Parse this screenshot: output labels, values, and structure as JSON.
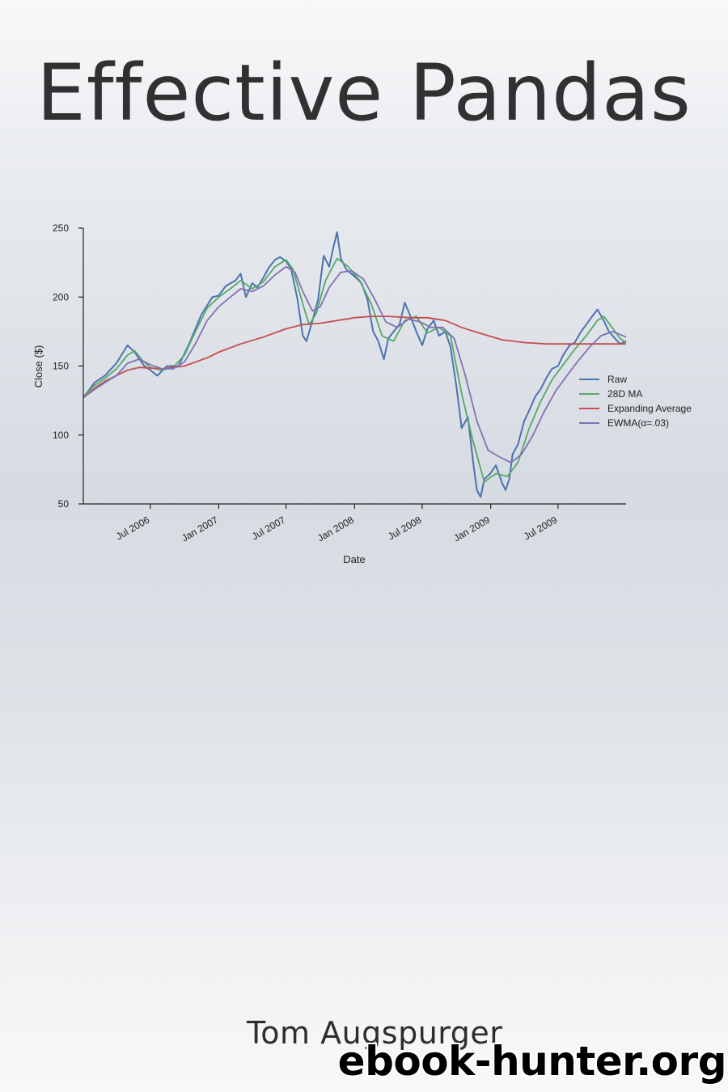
{
  "cover": {
    "title": "Effective Pandas",
    "author": "Tom Augspurger",
    "watermark": "ebook-hunter.org"
  },
  "chart_data": {
    "type": "line",
    "title": "",
    "xlabel": "Date",
    "ylabel": "Close ($)",
    "ylim": [
      50,
      250
    ],
    "xlim": [
      "2006-01-02",
      "2009-12-31"
    ],
    "yticks": [
      50,
      100,
      150,
      200,
      250
    ],
    "xticks": [
      "2006-07-01",
      "2007-01-01",
      "2007-07-01",
      "2008-01-01",
      "2008-07-01",
      "2009-01-01",
      "2009-07-01"
    ],
    "xtick_labels": [
      "Jul 2006",
      "Jan 2007",
      "Jul 2007",
      "Jan 2008",
      "Jul 2008",
      "Jan 2009",
      "Jul 2009"
    ],
    "legend": "center-right",
    "grid": false,
    "series": [
      {
        "name": "Raw",
        "color": "#4c72b0",
        "points": [
          [
            "2006-01-02",
            127
          ],
          [
            "2006-02-01",
            138
          ],
          [
            "2006-03-01",
            143
          ],
          [
            "2006-04-01",
            152
          ],
          [
            "2006-05-01",
            165
          ],
          [
            "2006-05-20",
            160
          ],
          [
            "2006-06-15",
            150
          ],
          [
            "2006-07-01",
            147
          ],
          [
            "2006-07-20",
            143
          ],
          [
            "2006-08-15",
            150
          ],
          [
            "2006-09-15",
            150
          ],
          [
            "2006-10-15",
            167
          ],
          [
            "2006-11-15",
            187
          ],
          [
            "2006-12-15",
            200
          ],
          [
            "2007-01-01",
            201
          ],
          [
            "2007-01-20",
            208
          ],
          [
            "2007-02-15",
            212
          ],
          [
            "2007-03-01",
            217
          ],
          [
            "2007-03-15",
            200
          ],
          [
            "2007-04-01",
            210
          ],
          [
            "2007-04-15",
            207
          ],
          [
            "2007-05-01",
            214
          ],
          [
            "2007-05-15",
            221
          ],
          [
            "2007-06-01",
            227
          ],
          [
            "2007-06-15",
            229
          ],
          [
            "2007-07-01",
            226
          ],
          [
            "2007-07-15",
            220
          ],
          [
            "2007-08-01",
            198
          ],
          [
            "2007-08-15",
            172
          ],
          [
            "2007-08-25",
            168
          ],
          [
            "2007-09-10",
            183
          ],
          [
            "2007-09-25",
            198
          ],
          [
            "2007-10-10",
            230
          ],
          [
            "2007-10-25",
            222
          ],
          [
            "2007-11-05",
            236
          ],
          [
            "2007-11-15",
            247
          ],
          [
            "2007-11-25",
            228
          ],
          [
            "2007-12-10",
            220
          ],
          [
            "2008-01-01",
            215
          ],
          [
            "2008-01-20",
            210
          ],
          [
            "2008-02-05",
            198
          ],
          [
            "2008-02-20",
            175
          ],
          [
            "2008-03-05",
            168
          ],
          [
            "2008-03-20",
            155
          ],
          [
            "2008-04-01",
            170
          ],
          [
            "2008-04-15",
            175
          ],
          [
            "2008-05-01",
            180
          ],
          [
            "2008-05-15",
            196
          ],
          [
            "2008-06-01",
            185
          ],
          [
            "2008-06-15",
            175
          ],
          [
            "2008-07-01",
            165
          ],
          [
            "2008-07-15",
            177
          ],
          [
            "2008-08-01",
            183
          ],
          [
            "2008-08-15",
            172
          ],
          [
            "2008-09-01",
            175
          ],
          [
            "2008-09-15",
            164
          ],
          [
            "2008-10-01",
            135
          ],
          [
            "2008-10-15",
            105
          ],
          [
            "2008-11-01",
            113
          ],
          [
            "2008-11-15",
            80
          ],
          [
            "2008-11-25",
            60
          ],
          [
            "2008-12-05",
            55
          ],
          [
            "2008-12-15",
            68
          ],
          [
            "2008-12-31",
            72
          ],
          [
            "2009-01-15",
            78
          ],
          [
            "2009-02-01",
            65
          ],
          [
            "2009-02-10",
            60
          ],
          [
            "2009-02-20",
            68
          ],
          [
            "2009-03-01",
            86
          ],
          [
            "2009-03-15",
            93
          ],
          [
            "2009-04-01",
            110
          ],
          [
            "2009-04-15",
            118
          ],
          [
            "2009-05-01",
            128
          ],
          [
            "2009-05-15",
            133
          ],
          [
            "2009-06-01",
            142
          ],
          [
            "2009-06-15",
            148
          ],
          [
            "2009-07-01",
            150
          ],
          [
            "2009-07-15",
            158
          ],
          [
            "2009-08-01",
            165
          ],
          [
            "2009-08-15",
            167
          ],
          [
            "2009-09-01",
            175
          ],
          [
            "2009-09-15",
            180
          ],
          [
            "2009-10-01",
            186
          ],
          [
            "2009-10-15",
            191
          ],
          [
            "2009-11-01",
            183
          ],
          [
            "2009-11-15",
            175
          ],
          [
            "2009-12-01",
            170
          ],
          [
            "2009-12-15",
            166
          ],
          [
            "2009-12-31",
            168
          ]
        ]
      },
      {
        "name": "28D MA",
        "color": "#55a868",
        "points": [
          [
            "2006-01-02",
            128
          ],
          [
            "2006-02-01",
            136
          ],
          [
            "2006-03-01",
            141
          ],
          [
            "2006-04-01",
            148
          ],
          [
            "2006-05-01",
            158
          ],
          [
            "2006-05-20",
            161
          ],
          [
            "2006-06-10",
            154
          ],
          [
            "2006-07-01",
            149
          ],
          [
            "2006-08-01",
            147
          ],
          [
            "2006-09-01",
            149
          ],
          [
            "2006-10-01",
            158
          ],
          [
            "2006-11-01",
            176
          ],
          [
            "2006-12-01",
            192
          ],
          [
            "2007-01-01",
            200
          ],
          [
            "2007-02-01",
            206
          ],
          [
            "2007-03-01",
            212
          ],
          [
            "2007-04-01",
            206
          ],
          [
            "2007-05-01",
            211
          ],
          [
            "2007-06-01",
            222
          ],
          [
            "2007-07-01",
            227
          ],
          [
            "2007-07-20",
            220
          ],
          [
            "2007-08-15",
            195
          ],
          [
            "2007-09-01",
            180
          ],
          [
            "2007-09-20",
            188
          ],
          [
            "2007-10-15",
            212
          ],
          [
            "2007-11-15",
            228
          ],
          [
            "2007-12-15",
            222
          ],
          [
            "2008-01-15",
            212
          ],
          [
            "2008-02-15",
            195
          ],
          [
            "2008-03-15",
            172
          ],
          [
            "2008-04-15",
            168
          ],
          [
            "2008-05-15",
            183
          ],
          [
            "2008-06-15",
            186
          ],
          [
            "2008-07-15",
            174
          ],
          [
            "2008-08-15",
            178
          ],
          [
            "2008-09-15",
            172
          ],
          [
            "2008-10-15",
            130
          ],
          [
            "2008-11-15",
            95
          ],
          [
            "2008-12-15",
            66
          ],
          [
            "2009-01-15",
            72
          ],
          [
            "2009-02-15",
            70
          ],
          [
            "2009-03-15",
            80
          ],
          [
            "2009-04-15",
            105
          ],
          [
            "2009-05-15",
            124
          ],
          [
            "2009-06-15",
            140
          ],
          [
            "2009-07-15",
            151
          ],
          [
            "2009-08-15",
            162
          ],
          [
            "2009-09-15",
            172
          ],
          [
            "2009-10-15",
            183
          ],
          [
            "2009-11-01",
            186
          ],
          [
            "2009-11-15",
            181
          ],
          [
            "2009-12-15",
            170
          ],
          [
            "2009-12-31",
            167
          ]
        ]
      },
      {
        "name": "Expanding Average",
        "color": "#c44e52",
        "points": [
          [
            "2006-01-02",
            127
          ],
          [
            "2006-02-01",
            134
          ],
          [
            "2006-03-01",
            139
          ],
          [
            "2006-05-01",
            147
          ],
          [
            "2006-06-01",
            149
          ],
          [
            "2006-08-01",
            148
          ],
          [
            "2006-10-01",
            150
          ],
          [
            "2006-12-01",
            156
          ],
          [
            "2007-01-01",
            160
          ],
          [
            "2007-03-01",
            166
          ],
          [
            "2007-05-01",
            171
          ],
          [
            "2007-07-01",
            177
          ],
          [
            "2007-08-15",
            180
          ],
          [
            "2007-10-01",
            181
          ],
          [
            "2008-01-01",
            185
          ],
          [
            "2008-02-15",
            186
          ],
          [
            "2008-04-01",
            186
          ],
          [
            "2008-06-01",
            185
          ],
          [
            "2008-07-15",
            185
          ],
          [
            "2008-09-01",
            183
          ],
          [
            "2008-10-15",
            178
          ],
          [
            "2008-12-01",
            174
          ],
          [
            "2009-02-01",
            169
          ],
          [
            "2009-04-01",
            167
          ],
          [
            "2009-06-01",
            166
          ],
          [
            "2009-08-01",
            166
          ],
          [
            "2009-10-15",
            166
          ],
          [
            "2009-12-31",
            166
          ]
        ]
      },
      {
        "name": "EWMA(α=.03)",
        "color": "#8172b2",
        "points": [
          [
            "2006-01-02",
            127
          ],
          [
            "2006-02-01",
            133
          ],
          [
            "2006-03-01",
            138
          ],
          [
            "2006-04-01",
            143
          ],
          [
            "2006-05-01",
            152
          ],
          [
            "2006-06-01",
            155
          ],
          [
            "2006-07-01",
            151
          ],
          [
            "2006-08-01",
            148
          ],
          [
            "2006-09-01",
            148
          ],
          [
            "2006-10-01",
            153
          ],
          [
            "2006-11-01",
            167
          ],
          [
            "2006-12-01",
            183
          ],
          [
            "2007-01-01",
            193
          ],
          [
            "2007-02-01",
            200
          ],
          [
            "2007-03-01",
            206
          ],
          [
            "2007-04-01",
            204
          ],
          [
            "2007-05-01",
            208
          ],
          [
            "2007-06-01",
            216
          ],
          [
            "2007-07-01",
            222
          ],
          [
            "2007-07-25",
            218
          ],
          [
            "2007-08-15",
            204
          ],
          [
            "2007-09-10",
            190
          ],
          [
            "2007-10-01",
            193
          ],
          [
            "2007-10-25",
            207
          ],
          [
            "2007-11-25",
            218
          ],
          [
            "2007-12-25",
            219
          ],
          [
            "2008-01-25",
            213
          ],
          [
            "2008-02-25",
            198
          ],
          [
            "2008-03-25",
            182
          ],
          [
            "2008-04-25",
            178
          ],
          [
            "2008-05-25",
            184
          ],
          [
            "2008-06-25",
            182
          ],
          [
            "2008-07-25",
            178
          ],
          [
            "2008-08-25",
            178
          ],
          [
            "2008-09-25",
            170
          ],
          [
            "2008-10-25",
            143
          ],
          [
            "2008-11-25",
            110
          ],
          [
            "2008-12-25",
            89
          ],
          [
            "2009-01-25",
            84
          ],
          [
            "2009-02-25",
            80
          ],
          [
            "2009-03-25",
            86
          ],
          [
            "2009-04-25",
            100
          ],
          [
            "2009-05-25",
            117
          ],
          [
            "2009-06-25",
            132
          ],
          [
            "2009-07-25",
            143
          ],
          [
            "2009-08-25",
            154
          ],
          [
            "2009-09-25",
            164
          ],
          [
            "2009-10-25",
            172
          ],
          [
            "2009-11-25",
            175
          ],
          [
            "2009-12-31",
            171
          ]
        ]
      }
    ]
  }
}
